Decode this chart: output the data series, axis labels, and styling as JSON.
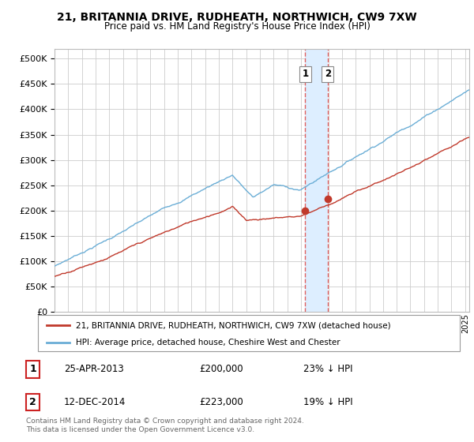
{
  "title": "21, BRITANNIA DRIVE, RUDHEATH, NORTHWICH, CW9 7XW",
  "subtitle": "Price paid vs. HM Land Registry's House Price Index (HPI)",
  "ytick_values": [
    0,
    50000,
    100000,
    150000,
    200000,
    250000,
    300000,
    350000,
    400000,
    450000,
    500000
  ],
  "ylim": [
    0,
    520000
  ],
  "xlim_start": 1995.0,
  "xlim_end": 2025.3,
  "hpi_color": "#6baed6",
  "price_color": "#c0392b",
  "transaction1_date": 2013.31,
  "transaction1_price": 200000,
  "transaction2_date": 2014.96,
  "transaction2_price": 223000,
  "legend_label1": "21, BRITANNIA DRIVE, RUDHEATH, NORTHWICH, CW9 7XW (detached house)",
  "legend_label2": "HPI: Average price, detached house, Cheshire West and Chester",
  "table_row1": [
    "1",
    "25-APR-2013",
    "£200,000",
    "23% ↓ HPI"
  ],
  "table_row2": [
    "2",
    "12-DEC-2014",
    "£223,000",
    "19% ↓ HPI"
  ],
  "footer": "Contains HM Land Registry data © Crown copyright and database right 2024.\nThis data is licensed under the Open Government Licence v3.0.",
  "background_color": "#ffffff",
  "grid_color": "#cccccc",
  "dashed_color": "#e06060",
  "span_color": "#ddeeff"
}
